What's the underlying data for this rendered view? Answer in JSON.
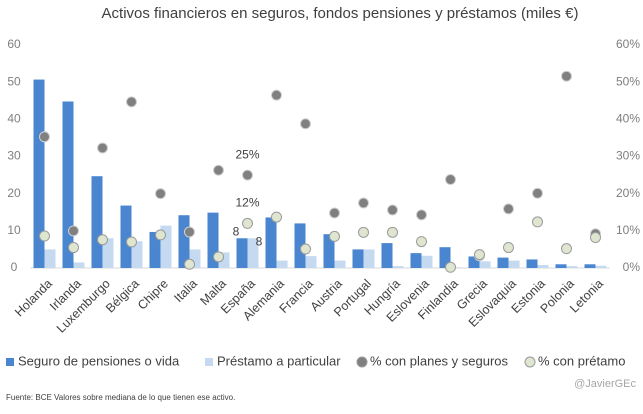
{
  "chart_data": {
    "type": "bar",
    "title": "Activos financieros en seguros, fondos pensiones y préstamos  (miles €)",
    "categories": [
      "Holanda",
      "Irlanda",
      "Luxemburgo",
      "Bélgica",
      "Chipre",
      "Italia",
      "Malta",
      "España",
      "Alemania",
      "Francia",
      "Austria",
      "Portugal",
      "Hungría",
      "Eslovenia",
      "Finlandia",
      "Grecia",
      "Eslovaquia",
      "Estonia",
      "Polonia",
      "Letonia"
    ],
    "series": [
      {
        "name": "Seguro de pensiones o vida",
        "type": "bar",
        "color": "#4a86d0",
        "values": [
          50.7,
          44.8,
          24.7,
          16.8,
          9.7,
          14.2,
          14.9,
          8,
          13.6,
          12,
          9.1,
          5,
          6.7,
          4,
          5.6,
          3.1,
          2.8,
          2.3,
          1,
          1
        ],
        "value_labels": [
          null,
          null,
          null,
          null,
          null,
          null,
          null,
          "8",
          null,
          null,
          null,
          null,
          null,
          null,
          null,
          null,
          null,
          null,
          null,
          null
        ]
      },
      {
        "name": "Préstamo a particular",
        "type": "bar",
        "color": "#c5d9f1",
        "values": [
          5,
          1.5,
          8,
          7.2,
          11.4,
          5,
          4.2,
          8,
          2,
          3.2,
          2,
          5,
          0.5,
          3.3,
          0.2,
          1.8,
          2,
          0.8,
          0.5,
          0.6
        ],
        "value_labels": [
          null,
          null,
          null,
          null,
          null,
          null,
          null,
          "8",
          null,
          null,
          null,
          null,
          null,
          null,
          null,
          null,
          null,
          null,
          null,
          null
        ]
      },
      {
        "name": "% con planes y seguros",
        "type": "scatter",
        "axis": "y2",
        "color": "#808080",
        "values": [
          35.3,
          10,
          32.3,
          44.7,
          20,
          9.7,
          26.3,
          25,
          46.5,
          38.8,
          14.8,
          17.5,
          15.6,
          14.3,
          23.8,
          3.3,
          15.9,
          20.1,
          51.6,
          9.2
        ],
        "value_labels": [
          null,
          null,
          null,
          null,
          null,
          null,
          null,
          "25%",
          null,
          null,
          null,
          null,
          null,
          null,
          null,
          null,
          null,
          null,
          null,
          null
        ]
      },
      {
        "name": "% con prétamo",
        "type": "scatter",
        "axis": "y2",
        "color": "#dfe6cf",
        "values": [
          8.6,
          5.5,
          7.6,
          7,
          8.9,
          1,
          3,
          12,
          13.7,
          5.1,
          8.5,
          9.6,
          9.6,
          7.1,
          0.2,
          3.6,
          5.5,
          12.4,
          5.2,
          8.2
        ],
        "value_labels": [
          null,
          null,
          null,
          null,
          null,
          null,
          null,
          "12%",
          null,
          null,
          null,
          null,
          null,
          null,
          null,
          null,
          null,
          null,
          null,
          null
        ]
      }
    ],
    "ylim": [
      0,
      60
    ],
    "yticks": [
      0,
      10,
      20,
      30,
      40,
      50,
      60
    ],
    "y2lim": [
      0,
      60
    ],
    "y2ticks": [
      {
        "value": 0,
        "label": "0%"
      },
      {
        "value": 10,
        "label": "10%"
      },
      {
        "value": 20,
        "label": "20%"
      },
      {
        "value": 30,
        "label": "30%"
      },
      {
        "value": 40,
        "label": "40%"
      },
      {
        "value": 50,
        "label": "50%"
      },
      {
        "value": 60,
        "label": "60%"
      }
    ],
    "grid": false,
    "legend": "bottom",
    "source": "Fuente: BCE Valores sobre mediana  de lo que tienen ese activo.",
    "signature": "@JavierGEc"
  }
}
